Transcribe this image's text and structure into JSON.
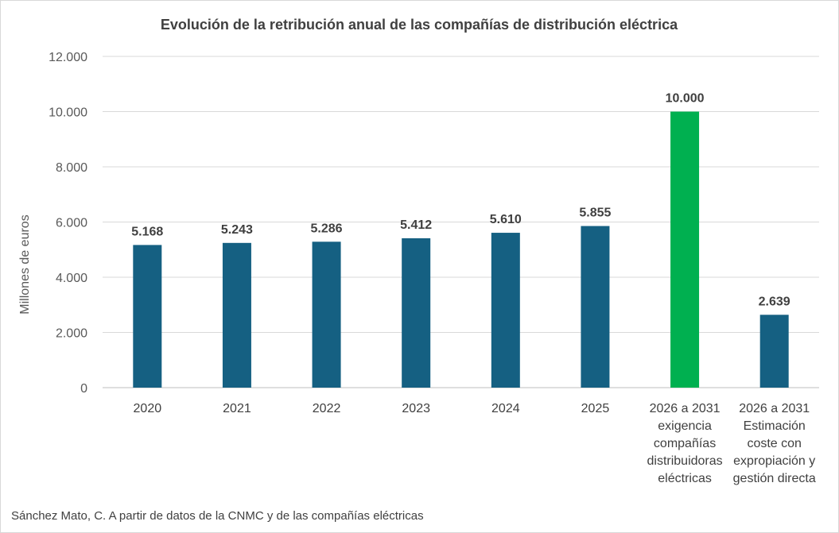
{
  "chart_data": {
    "type": "bar",
    "title": "Evolución de la retribución anual de las compañías de distribución eléctrica",
    "ylabel": "Millones de euros",
    "xlabel": "",
    "ylim": [
      0,
      12000
    ],
    "yticks": [
      0,
      2000,
      4000,
      6000,
      8000,
      10000,
      12000
    ],
    "ytick_labels": [
      "0",
      "2.000",
      "4.000",
      "6.000",
      "8.000",
      "10.000",
      "12.000"
    ],
    "grid": true,
    "legend": "none",
    "categories": [
      [
        "2020"
      ],
      [
        "2021"
      ],
      [
        "2022"
      ],
      [
        "2023"
      ],
      [
        "2024"
      ],
      [
        "2025"
      ],
      [
        "2026 a 2031",
        "exigencia",
        "compañías",
        "distribuidoras",
        "eléctricas"
      ],
      [
        "2026 a 2031",
        "Estimación",
        "coste con",
        "expropiación y",
        "gestión directa"
      ]
    ],
    "values": [
      5168,
      5243,
      5286,
      5412,
      5610,
      5855,
      10000,
      2639
    ],
    "value_labels": [
      "5.168",
      "5.243",
      "5.286",
      "5.412",
      "5.610",
      "5.855",
      "10.000",
      "2.639"
    ],
    "colors": [
      "#156082",
      "#156082",
      "#156082",
      "#156082",
      "#156082",
      "#156082",
      "#00B050",
      "#156082"
    ],
    "source": "Sánchez Mato, C.  A partir de datos de la CNMC y de las compañías eléctricas"
  }
}
